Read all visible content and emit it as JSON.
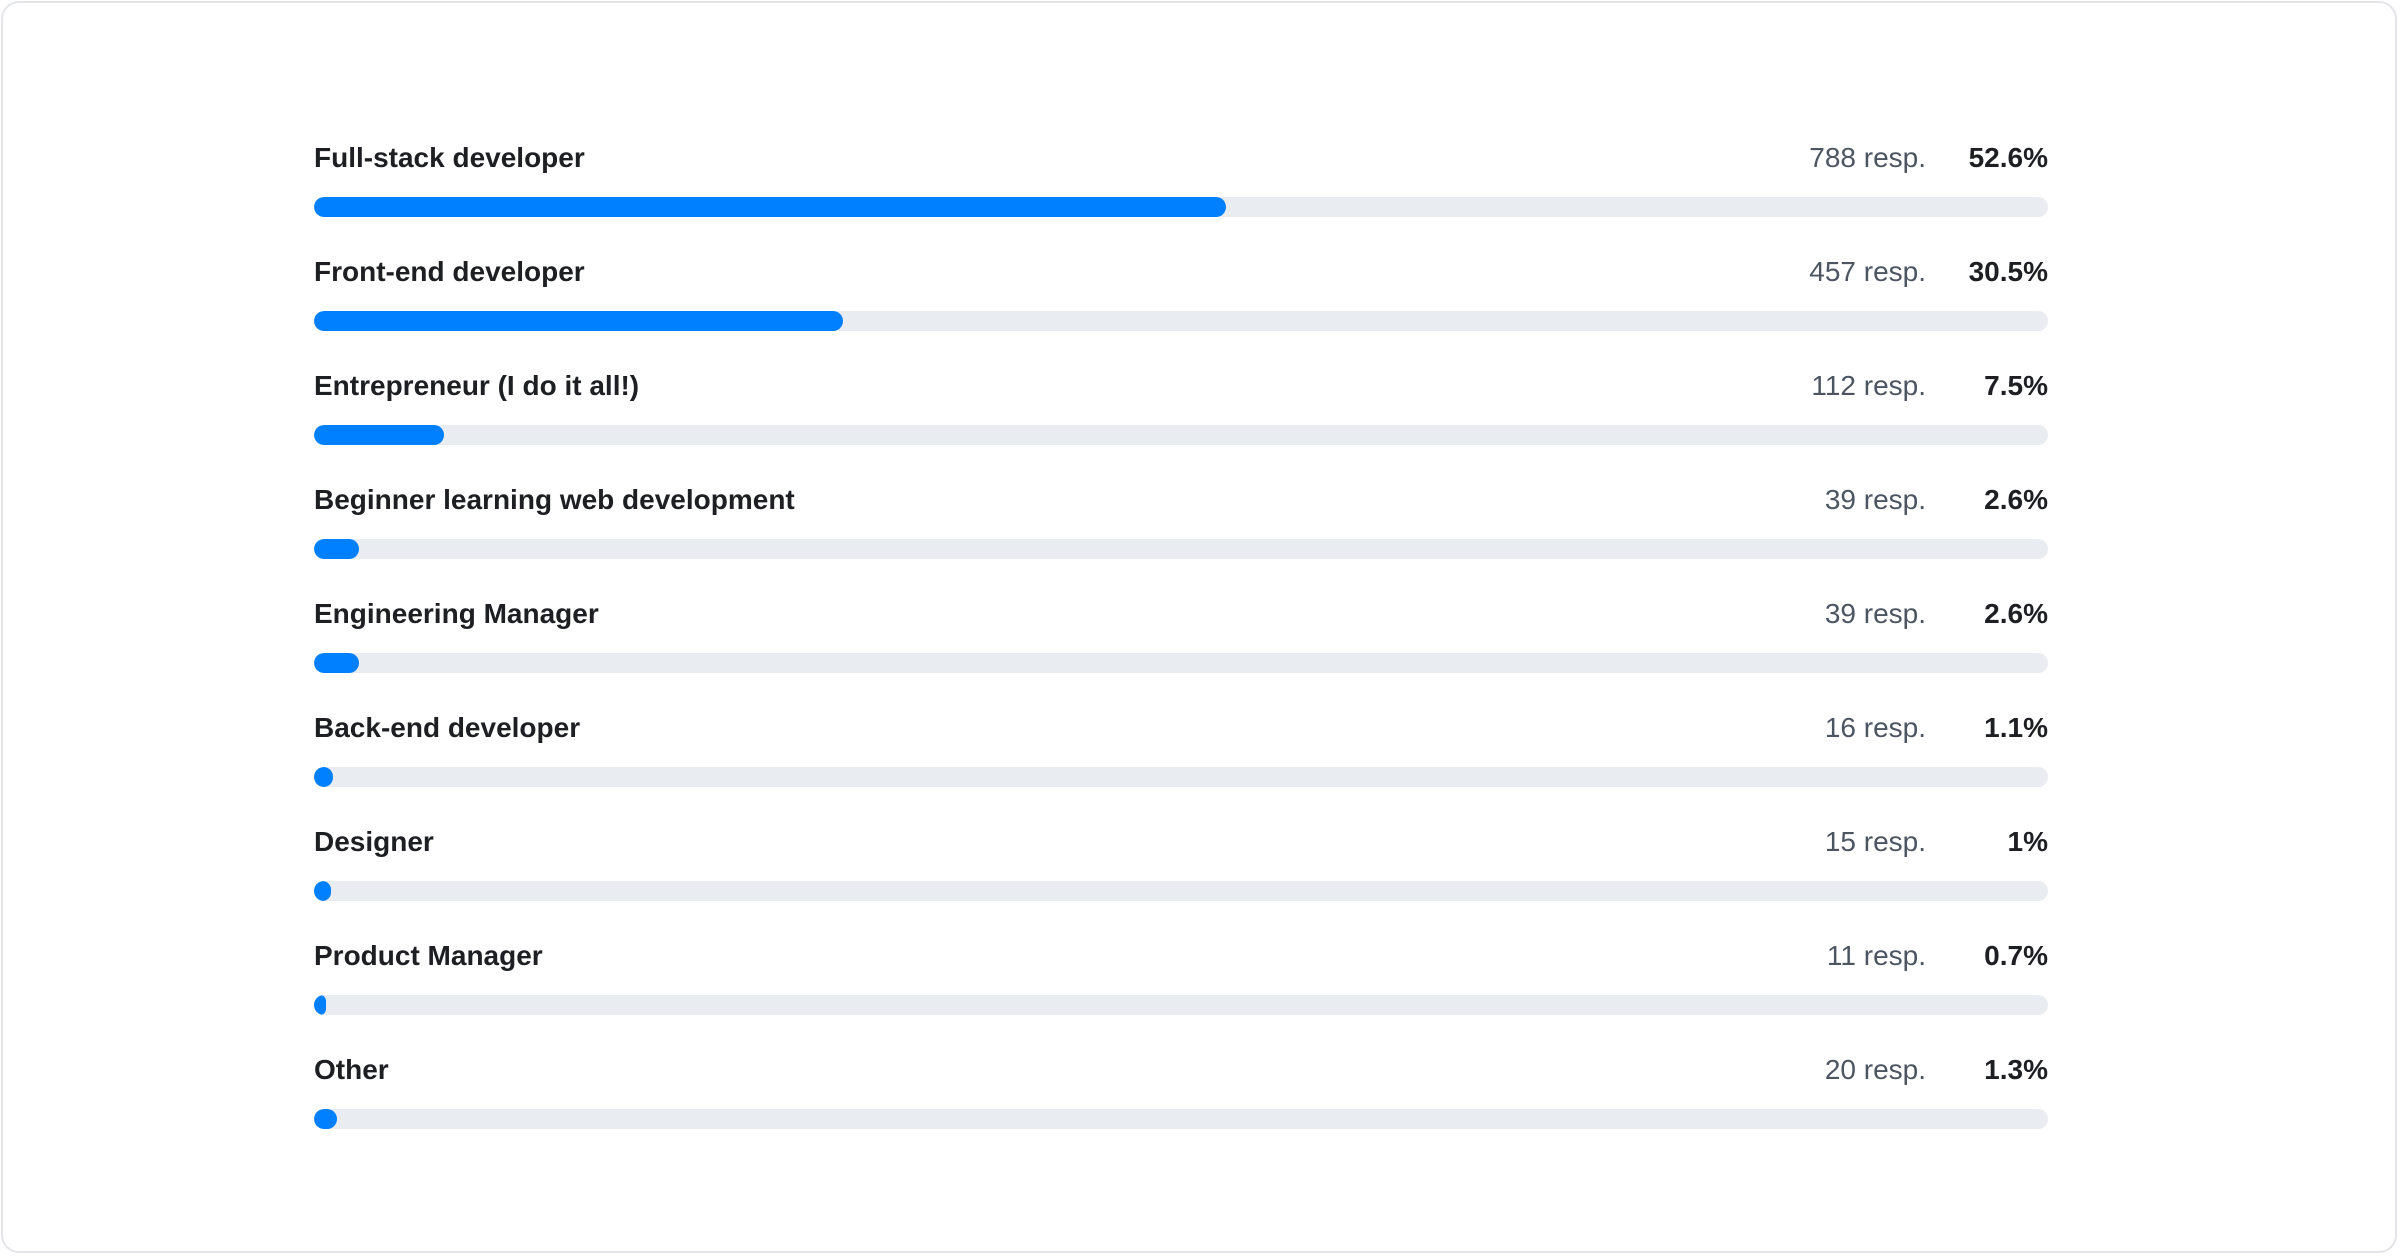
{
  "chart_data": {
    "type": "bar",
    "orientation": "horizontal",
    "xlim": [
      0,
      100
    ],
    "colors": {
      "fill": "#0080ff",
      "track": "#e9ecf1"
    },
    "rows": [
      {
        "label": "Full-stack developer",
        "responses": "788 resp.",
        "percent_label": "52.6%",
        "value": 52.6
      },
      {
        "label": "Front-end developer",
        "responses": "457 resp.",
        "percent_label": "30.5%",
        "value": 30.5
      },
      {
        "label": "Entrepreneur (I do it all!)",
        "responses": "112 resp.",
        "percent_label": "7.5%",
        "value": 7.5
      },
      {
        "label": "Beginner learning web development",
        "responses": "39 resp.",
        "percent_label": "2.6%",
        "value": 2.6
      },
      {
        "label": "Engineering Manager",
        "responses": "39 resp.",
        "percent_label": "2.6%",
        "value": 2.6
      },
      {
        "label": "Back-end developer",
        "responses": "16 resp.",
        "percent_label": "1.1%",
        "value": 1.1
      },
      {
        "label": "Designer",
        "responses": "15 resp.",
        "percent_label": "1%",
        "value": 1
      },
      {
        "label": "Product Manager",
        "responses": "11 resp.",
        "percent_label": "0.7%",
        "value": 0.7
      },
      {
        "label": "Other",
        "responses": "20 resp.",
        "percent_label": "1.3%",
        "value": 1.3
      }
    ]
  }
}
